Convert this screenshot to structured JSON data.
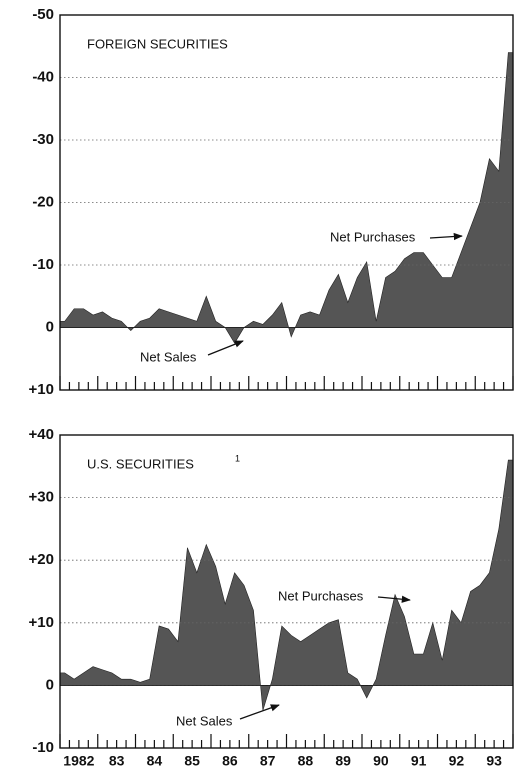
{
  "chart_data": [
    {
      "type": "area",
      "title": "FOREIGN SECURITIES",
      "annotations": [
        "Net Purchases",
        "Net Sales"
      ],
      "color": "#555555",
      "values": [
        -1,
        -3,
        -3,
        -2,
        -2.5,
        -1.5,
        -1,
        0.5,
        -1,
        -1.5,
        -3,
        -2.5,
        -2,
        -1.5,
        -1,
        -5,
        -1,
        0,
        2.5,
        0,
        -1,
        -0.5,
        -2,
        -4,
        1.5,
        -2,
        -2.5,
        -2,
        -6,
        -8.5,
        -4,
        -8,
        -10.5,
        -1,
        -8,
        -9,
        -11,
        -12,
        -12,
        -10,
        -8,
        -8,
        -12,
        -16,
        -20,
        -27,
        -25,
        -44
      ],
      "ylim": [
        10,
        -50
      ],
      "yticks": [
        -50,
        -40,
        -30,
        -20,
        -10,
        0,
        {
          "value": 10,
          "label": "+10"
        }
      ],
      "grid": true
    },
    {
      "type": "area",
      "title": "U.S. SECURITIES",
      "footnote_marker": "1",
      "annotations": [
        "Net Purchases",
        "Net Sales"
      ],
      "color": "#555555",
      "categories": [
        "1982",
        null,
        null,
        null,
        "83",
        null,
        null,
        null,
        "84",
        null,
        null,
        null,
        "85",
        null,
        null,
        null,
        "86",
        null,
        null,
        null,
        "87",
        null,
        null,
        null,
        "88",
        null,
        null,
        null,
        "89",
        null,
        null,
        null,
        "90",
        null,
        null,
        null,
        "91",
        null,
        null,
        null,
        "92",
        null,
        null,
        null,
        "93",
        null,
        null,
        null
      ],
      "values": [
        2,
        1,
        2,
        3,
        2.5,
        2,
        1,
        1,
        0.5,
        1,
        9.5,
        9,
        7,
        22,
        18,
        22.5,
        19,
        13,
        18,
        16,
        12,
        -4,
        1,
        9.5,
        8,
        7,
        8,
        9,
        10,
        10.5,
        2,
        1,
        -2,
        1,
        8,
        14.5,
        11,
        5,
        5,
        10,
        4,
        12,
        10,
        15,
        16,
        18,
        25,
        36
      ],
      "ylim": [
        -10,
        40
      ],
      "yticks": [
        {
          "value": 40,
          "label": "+40"
        },
        {
          "value": 30,
          "label": "+30"
        },
        {
          "value": 20,
          "label": "+20"
        },
        {
          "value": 10,
          "label": "+10"
        },
        0,
        -10
      ],
      "grid": true
    }
  ]
}
